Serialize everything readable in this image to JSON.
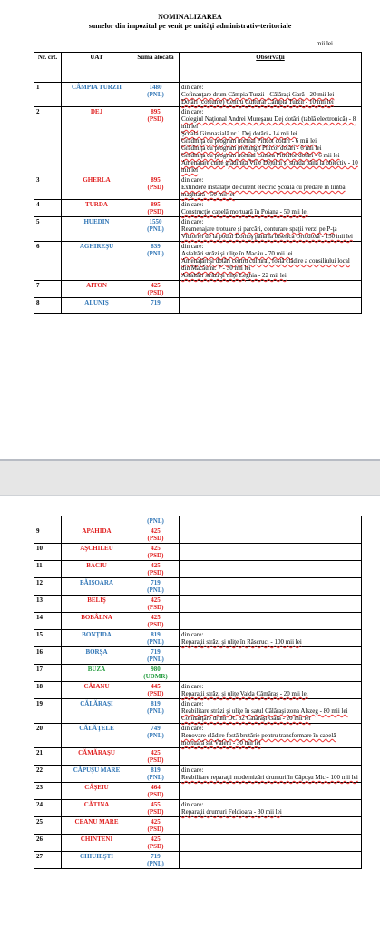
{
  "header": {
    "title": "NOMINALIZAREA",
    "subtitle": "sumelor din impozitul pe venit pe unităţi administrativ-teritoriale",
    "unit": "mii lei"
  },
  "party_colors": {
    "(PNL)": "#2e74b5",
    "(PSD)": "#e02020",
    "(UDMR)": "#1f9a3a"
  },
  "table": {
    "header": [
      "Nr. crt.",
      "UAT",
      "Suma alocată",
      "Observaţii"
    ],
    "rows": [
      {
        "nr": "1",
        "uat": "CÂMPIA TURZII",
        "suma": 1480,
        "party": "(PNL)",
        "obs": [
          "din care:",
          "Cofinanţare drum Câmpia Turzii - Călăraşi Gară - 20 mii lei",
          "Dotări (costume) Centru Cultural Câmpia Turzii - 10 mii lei"
        ]
      },
      {
        "nr": "2",
        "uat": "DEJ",
        "suma": 895,
        "party": "(PSD)",
        "obs": [
          "din care:",
          "Colegiul Naţional Andrei Mureşanu Dej dotări (tablă electronică) - 8 mii lei",
          "Şcoala Gimnazială nr.1 Dej dotări - 14 mii lei",
          "Grădiniţa cu program normal Piticot dotări - 6 mii lei",
          "Grădiniţa cu program prelungit Piticot dotări - 6 mii lei",
          "Grădiniţa cu program normal Lumea Piticilor dotări - 6 mii lei",
          "Amenajare curte grădiniţa Viile Dejului şi strada până la obiectiv - 10 mii lei"
        ]
      },
      {
        "nr": "3",
        "uat": "GHERLA",
        "suma": 895,
        "party": "(PSD)",
        "obs": [
          "din care:",
          "Extindere instalaţie de curent electric Şcoala cu predare în limba maghiară - 50 mii lei"
        ]
      },
      {
        "nr": "4",
        "uat": "TURDA",
        "suma": 895,
        "party": "(PSD)",
        "obs": [
          "din care:",
          "Construcţie capelă mortuară în Poiana - 50 mii lei"
        ]
      },
      {
        "nr": "5",
        "uat": "HUEDIN",
        "suma": 1550,
        "party": "(PNL)",
        "obs": [
          "din care:",
          "Reamenajare trotuare şi parcări, conturare spaţii verzi pe P-ţa Victoriei de la podul Domoş până la biserica Ortodoxă - 150 mii lei"
        ]
      },
      {
        "nr": "6",
        "uat": "AGHIREŞU",
        "suma": 839,
        "party": "(PNL)",
        "obs": [
          "din care:",
          "Asfaltări străzi şi uliţe în Macău - 70 mii lei",
          "Amenajări şi dotări centru cultural, fostă clădire a consiliului local din Macău nr. 7 - 30 mii lei",
          "Asfaltări străzi şi uliţe Leghia - 22 mii lei"
        ]
      },
      {
        "nr": "7",
        "uat": "AITON",
        "suma": 425,
        "party": "(PSD)",
        "obs": []
      },
      {
        "nr": "8",
        "uat": "ALUNIŞ",
        "suma": 719,
        "party": "(PNL)",
        "obs": []
      },
      {
        "nr": "9",
        "uat": "APAHIDA",
        "suma": 425,
        "party": "(PSD)",
        "obs": []
      },
      {
        "nr": "10",
        "uat": "AŞCHILEU",
        "suma": 425,
        "party": "(PSD)",
        "obs": []
      },
      {
        "nr": "11",
        "uat": "BACIU",
        "suma": 425,
        "party": "(PSD)",
        "obs": []
      },
      {
        "nr": "12",
        "uat": "BĂIŞOARA",
        "suma": 719,
        "party": "(PNL)",
        "obs": []
      },
      {
        "nr": "13",
        "uat": "BELIŞ",
        "suma": 425,
        "party": "(PSD)",
        "obs": []
      },
      {
        "nr": "14",
        "uat": "BOBÂLNA",
        "suma": 425,
        "party": "(PSD)",
        "obs": []
      },
      {
        "nr": "15",
        "uat": "BONŢIDA",
        "suma": 819,
        "party": "(PNL)",
        "obs": [
          "din care:",
          "Reparaţii străzi şi uliţe în Răscruci - 100 mii lei"
        ]
      },
      {
        "nr": "16",
        "uat": "BORŞA",
        "suma": 719,
        "party": "(PNL)",
        "obs": []
      },
      {
        "nr": "17",
        "uat": "BUZA",
        "suma": 980,
        "party": "(UDMR)",
        "obs": []
      },
      {
        "nr": "18",
        "uat": "CĂIANU",
        "suma": 445,
        "party": "(PSD)",
        "obs": [
          "din care:",
          "Reparaţii străzi şi uliţe Vaida Cămăraş - 20 mii lei"
        ]
      },
      {
        "nr": "19",
        "uat": "CĂLĂRAŞI",
        "suma": 819,
        "party": "(PNL)",
        "obs": [
          "din care:",
          "Reabilitare străzi şi uliţe în satul Călăraşi zona Alszeg - 80 mii lei",
          "Cofinanţare drum DC 62 Călăraşi Gară - 20 mii lei"
        ]
      },
      {
        "nr": "20",
        "uat": "CĂLĂŢELE",
        "suma": 749,
        "party": "(PNL)",
        "obs": [
          "din care:",
          "Renovare clădire fostă brutărie pentru transformare în capelă mortuară sat Văleni - 30 mii lei"
        ]
      },
      {
        "nr": "21",
        "uat": "CĂMĂRAŞU",
        "suma": 425,
        "party": "(PSD)",
        "obs": []
      },
      {
        "nr": "22",
        "uat": "CĂPUŞU MARE",
        "suma": 819,
        "party": "(PNL)",
        "obs": [
          "din care:",
          "Reabilitare reparaţii modernizări drumuri în Căpuşu Mic - 100 mii lei"
        ]
      },
      {
        "nr": "23",
        "uat": "CĂŞEIU",
        "suma": 464,
        "party": "(PSD)",
        "obs": []
      },
      {
        "nr": "24",
        "uat": "CĂTINA",
        "suma": 455,
        "party": "(PSD)",
        "obs": [
          "din care:",
          "Reparaţii drumuri Feldioara - 30 mii lei"
        ]
      },
      {
        "nr": "25",
        "uat": "CEANU MARE",
        "suma": 425,
        "party": "(PSD)",
        "obs": []
      },
      {
        "nr": "26",
        "uat": "CHINTENI",
        "suma": 425,
        "party": "(PSD)",
        "obs": []
      },
      {
        "nr": "27",
        "uat": "CHIUIEŞTI",
        "suma": 719,
        "party": "(PNL)",
        "obs": []
      }
    ]
  }
}
